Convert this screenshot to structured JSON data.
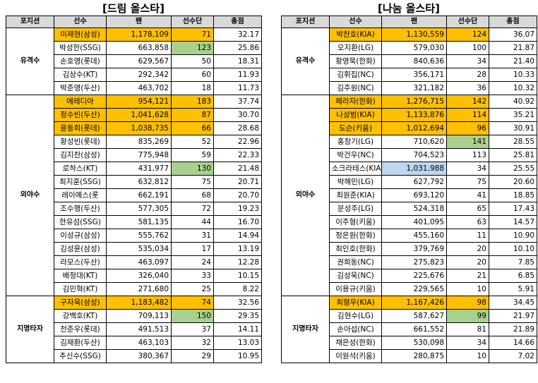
{
  "left": {
    "title": "[드림 올스타]",
    "headers": [
      "포지션",
      "선수",
      "팬",
      "선수단",
      "총점"
    ],
    "groups": [
      {
        "position": "유격수",
        "rows": [
          {
            "name": "이재현(삼성)",
            "fan": "1,178,109",
            "team": "71",
            "total": "32.17",
            "hl": "y",
            "cell": ""
          },
          {
            "name": "박성한(SSG)",
            "fan": "663,858",
            "team": "123",
            "total": "25.86",
            "hl": "",
            "cell": "team"
          },
          {
            "name": "손호영(롯데)",
            "fan": "629,567",
            "team": "50",
            "total": "18.31",
            "hl": "",
            "cell": ""
          },
          {
            "name": "김상수(KT)",
            "fan": "292,342",
            "team": "60",
            "total": "11.93",
            "hl": "",
            "cell": ""
          },
          {
            "name": "박준영(두산)",
            "fan": "463,702",
            "team": "18",
            "total": "11.73",
            "hl": "",
            "cell": ""
          }
        ]
      },
      {
        "position": "외야수",
        "rows": [
          {
            "name": "에레디아",
            "fan": "954,121",
            "team": "183",
            "total": "37.74",
            "hl": "y",
            "cell": ""
          },
          {
            "name": "정수빈(두산)",
            "fan": "1,041,628",
            "team": "87",
            "total": "30.70",
            "hl": "y",
            "cell": ""
          },
          {
            "name": "윤동희(롯데)",
            "fan": "1,038,735",
            "team": "66",
            "total": "28.68",
            "hl": "y",
            "cell": ""
          },
          {
            "name": "황성빈(롯데)",
            "fan": "835,269",
            "team": "52",
            "total": "22.96",
            "hl": "",
            "cell": ""
          },
          {
            "name": "김지찬(삼성)",
            "fan": "775,948",
            "team": "59",
            "total": "22.33",
            "hl": "",
            "cell": ""
          },
          {
            "name": "로하스(KT)",
            "fan": "431,977",
            "team": "130",
            "total": "21.48",
            "hl": "",
            "cell": "team"
          },
          {
            "name": "최지훈(SSG)",
            "fan": "632,812",
            "team": "75",
            "total": "20.71",
            "hl": "",
            "cell": ""
          },
          {
            "name": "레이예스(롯",
            "fan": "662,191",
            "team": "68",
            "total": "20.70",
            "hl": "",
            "cell": ""
          },
          {
            "name": "조수행(두산)",
            "fan": "577,305",
            "team": "72",
            "total": "19.23",
            "hl": "",
            "cell": ""
          },
          {
            "name": "한유섬(SSG)",
            "fan": "581,135",
            "team": "44",
            "total": "16.70",
            "hl": "",
            "cell": ""
          },
          {
            "name": "이성규(삼성)",
            "fan": "555,762",
            "team": "31",
            "total": "14.94",
            "hl": "",
            "cell": ""
          },
          {
            "name": "김성윤(삼성)",
            "fan": "535,034",
            "team": "17",
            "total": "13.19",
            "hl": "",
            "cell": ""
          },
          {
            "name": "라모스(두산)",
            "fan": "463,097",
            "team": "24",
            "total": "12.28",
            "hl": "",
            "cell": ""
          },
          {
            "name": "배정대(KT)",
            "fan": "326,040",
            "team": "33",
            "total": "10.15",
            "hl": "",
            "cell": ""
          },
          {
            "name": "김민혁(KT)",
            "fan": "271,680",
            "team": "25",
            "total": "8.22",
            "hl": "",
            "cell": ""
          }
        ]
      },
      {
        "position": "지명타자",
        "rows": [
          {
            "name": "구자욱(삼성)",
            "fan": "1,183,482",
            "team": "74",
            "total": "32.56",
            "hl": "y",
            "cell": ""
          },
          {
            "name": "강백호(KT)",
            "fan": "709,113",
            "team": "150",
            "total": "29.35",
            "hl": "",
            "cell": "team"
          },
          {
            "name": "전준우(롯데)",
            "fan": "491,513",
            "team": "37",
            "total": "14.11",
            "hl": "",
            "cell": ""
          },
          {
            "name": "김재환(두산)",
            "fan": "463,103",
            "team": "32",
            "total": "13.03",
            "hl": "",
            "cell": ""
          },
          {
            "name": "추신수(SSG)",
            "fan": "380,367",
            "team": "29",
            "total": "10.95",
            "hl": "",
            "cell": ""
          }
        ]
      }
    ]
  },
  "right": {
    "title": "[나눔 올스타]",
    "headers": [
      "포지션",
      "선수",
      "팬",
      "선수단",
      "총점"
    ],
    "groups": [
      {
        "position": "유격수",
        "rows": [
          {
            "name": "박찬호(KIA)",
            "fan": "1,130,559",
            "team": "124",
            "total": "36.07",
            "hl": "y",
            "cell": ""
          },
          {
            "name": "오지환(LG)",
            "fan": "579,030",
            "team": "100",
            "total": "21.87",
            "hl": "",
            "cell": ""
          },
          {
            "name": "황영묵(한화)",
            "fan": "840,636",
            "team": "34",
            "total": "21.40",
            "hl": "",
            "cell": ""
          },
          {
            "name": "김휘집(NC)",
            "fan": "356,171",
            "team": "28",
            "total": "10.33",
            "hl": "",
            "cell": ""
          },
          {
            "name": "김주원(NC)",
            "fan": "321,182",
            "team": "36",
            "total": "10.32",
            "hl": "",
            "cell": ""
          }
        ]
      },
      {
        "position": "외야수",
        "rows": [
          {
            "name": "페라자(한화)",
            "fan": "1,276,715",
            "team": "142",
            "total": "40.92",
            "hl": "y",
            "cell": ""
          },
          {
            "name": "나성범(KIA)",
            "fan": "1,133,876",
            "team": "114",
            "total": "35.21",
            "hl": "y",
            "cell": ""
          },
          {
            "name": "도슨(키움)",
            "fan": "1,012,694",
            "team": "96",
            "total": "30.91",
            "hl": "y",
            "cell": ""
          },
          {
            "name": "홍창기(LG)",
            "fan": "710,620",
            "team": "141",
            "total": "28.55",
            "hl": "",
            "cell": "team"
          },
          {
            "name": "박건우(NC)",
            "fan": "704,523",
            "team": "113",
            "total": "25.81",
            "hl": "",
            "cell": ""
          },
          {
            "name": "소크라테스(KIA)",
            "fan": "1,031,988",
            "team": "34",
            "total": "25.55",
            "hl": "",
            "cell": "fan"
          },
          {
            "name": "박해민(LG)",
            "fan": "627,792",
            "team": "75",
            "total": "20.60",
            "hl": "",
            "cell": ""
          },
          {
            "name": "최원준(KIA)",
            "fan": "693,120",
            "team": "41",
            "total": "18.85",
            "hl": "",
            "cell": ""
          },
          {
            "name": "문성주(LG)",
            "fan": "524,318",
            "team": "65",
            "total": "17.43",
            "hl": "",
            "cell": ""
          },
          {
            "name": "이주형(키움)",
            "fan": "401,095",
            "team": "63",
            "total": "14.57",
            "hl": "",
            "cell": ""
          },
          {
            "name": "정은원(한화)",
            "fan": "455,160",
            "team": "11",
            "total": "10.90",
            "hl": "",
            "cell": ""
          },
          {
            "name": "최인호(한화)",
            "fan": "379,769",
            "team": "20",
            "total": "10.10",
            "hl": "",
            "cell": ""
          },
          {
            "name": "권희동(NC)",
            "fan": "275,823",
            "team": "20",
            "total": "7.85",
            "hl": "",
            "cell": ""
          },
          {
            "name": "김성욱(NC)",
            "fan": "225,676",
            "team": "21",
            "total": "6.85",
            "hl": "",
            "cell": ""
          },
          {
            "name": "이용규(키움)",
            "fan": "229,565",
            "team": "10",
            "total": "5.91",
            "hl": "",
            "cell": ""
          }
        ]
      },
      {
        "position": "지명타자",
        "rows": [
          {
            "name": "최형우(KIA)",
            "fan": "1,167,426",
            "team": "98",
            "total": "34.45",
            "hl": "y",
            "cell": ""
          },
          {
            "name": "김현수(LG)",
            "fan": "587,627",
            "team": "99",
            "total": "21.97",
            "hl": "",
            "cell": "team"
          },
          {
            "name": "손아섭(NC)",
            "fan": "661,552",
            "team": "81",
            "total": "21.89",
            "hl": "",
            "cell": ""
          },
          {
            "name": "채은성(한화)",
            "fan": "530,098",
            "team": "34",
            "total": "14.66",
            "hl": "",
            "cell": ""
          },
          {
            "name": "이원석(키움)",
            "fan": "280,875",
            "team": "10",
            "total": "7.02",
            "hl": "",
            "cell": ""
          }
        ]
      }
    ]
  },
  "colors": {
    "highlight": "#ffc000",
    "green": "#a9d08e",
    "blue": "#bdd7ee",
    "header": "#d9d9d9"
  }
}
